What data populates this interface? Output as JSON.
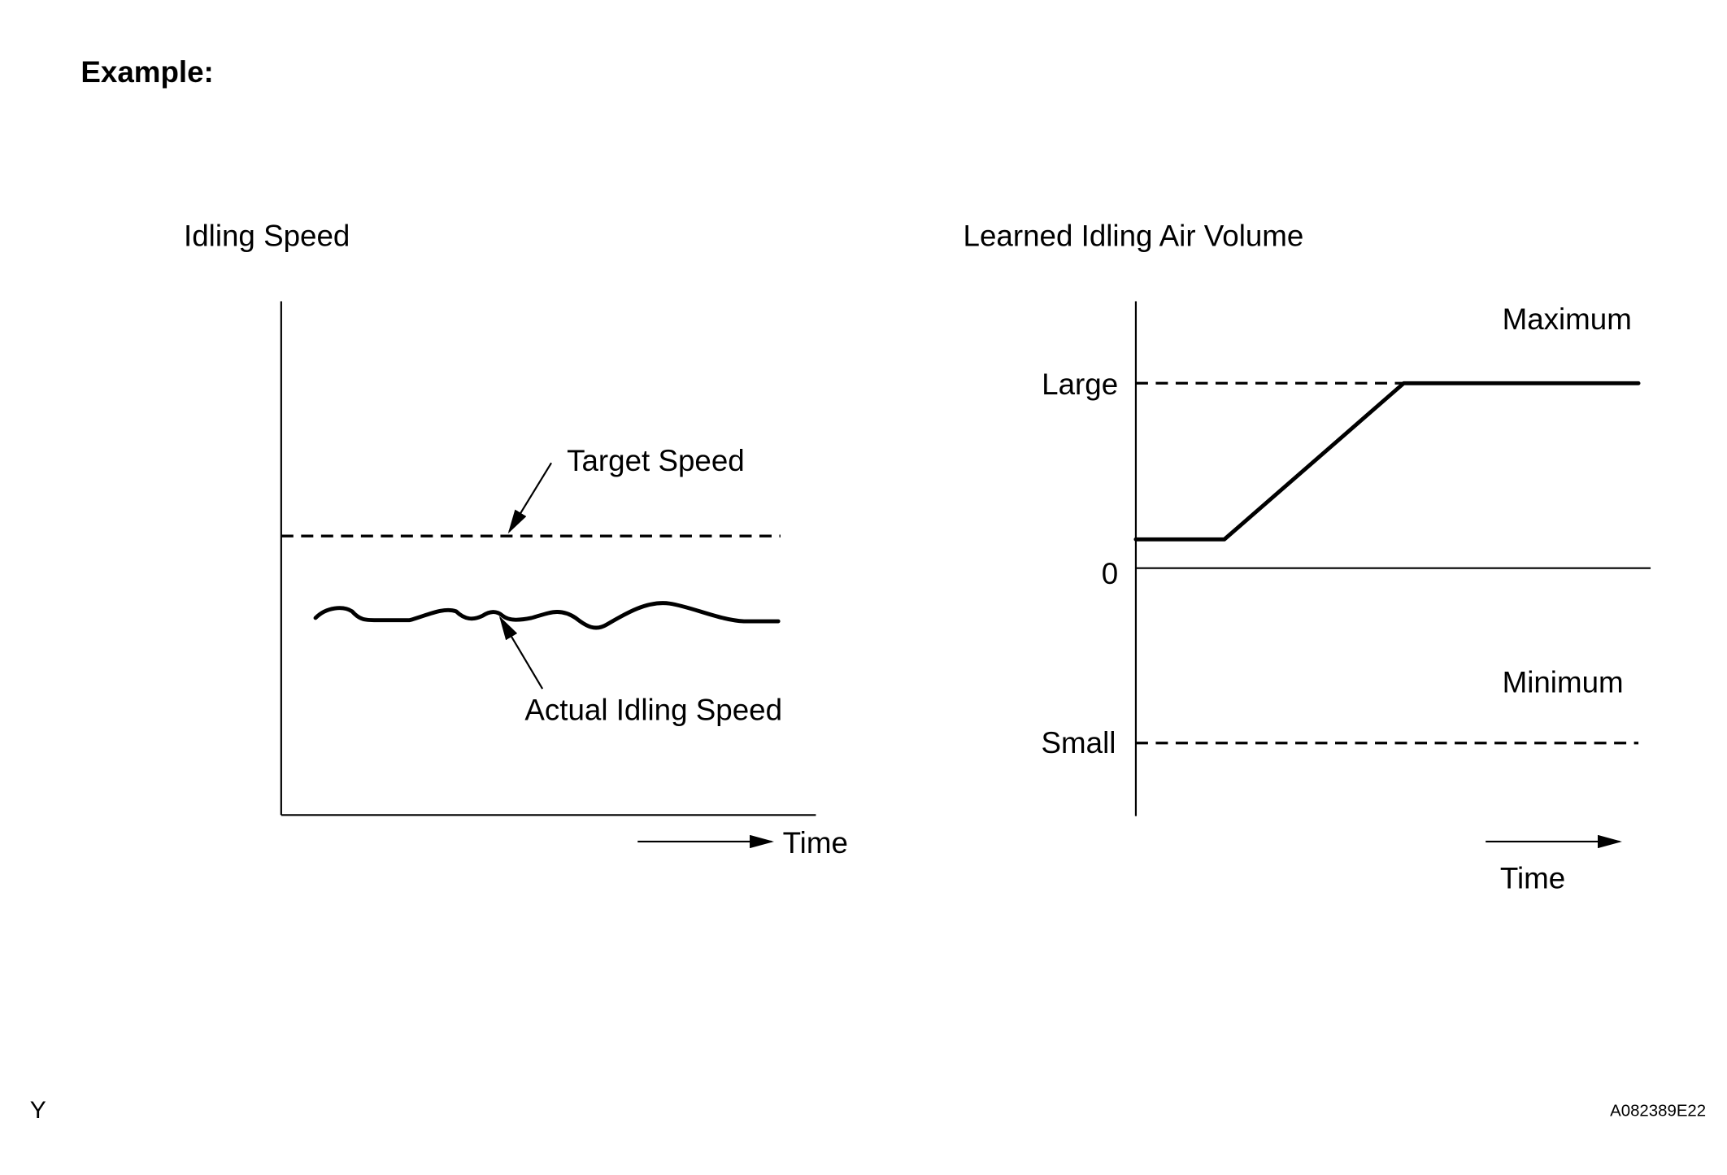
{
  "header": {
    "title": "Example:"
  },
  "left_graph": {
    "title": "Idling Speed",
    "target_label": "Target Speed",
    "actual_label": "Actual Idling Speed",
    "time_label": "Time"
  },
  "right_graph": {
    "title": "Learned Idling Air Volume",
    "maximum_label": "Maximum",
    "minimum_label": "Minimum",
    "large_label": "Large",
    "zero_label": "0",
    "small_label": "Small",
    "time_label": "Time"
  },
  "footer": {
    "left_code": "Y",
    "figure_id": "A082389E22"
  }
}
